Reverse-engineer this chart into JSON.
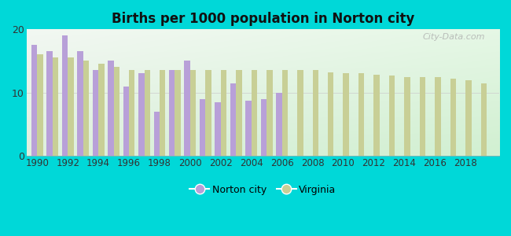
{
  "title": "Births per 1000 population in Norton city",
  "background_color": "#00d8d8",
  "norton_color": "#b8a0d8",
  "virginia_color": "#c8cf96",
  "norton_years": [
    1990,
    1991,
    1992,
    1993,
    1994,
    1995,
    1996,
    1997,
    1998,
    1999,
    2000,
    2001,
    2002,
    2003,
    2004,
    2005,
    2006
  ],
  "norton_vals": [
    17.5,
    16.5,
    19.0,
    16.5,
    13.5,
    15.0,
    11.0,
    13.0,
    7.0,
    13.5,
    15.0,
    9.0,
    8.5,
    11.5,
    8.7,
    9.0,
    10.0
  ],
  "virginia_years": [
    1990,
    1991,
    1992,
    1993,
    1994,
    1995,
    1996,
    1997,
    1998,
    1999,
    2000,
    2001,
    2002,
    2003,
    2004,
    2005,
    2006,
    2007,
    2008,
    2009,
    2010,
    2011,
    2012,
    2013,
    2014,
    2015,
    2016,
    2017,
    2018,
    2019
  ],
  "virginia_vals": [
    16.0,
    15.5,
    15.5,
    15.0,
    14.5,
    14.0,
    13.5,
    13.5,
    13.5,
    13.5,
    13.5,
    13.5,
    13.5,
    13.5,
    13.5,
    13.5,
    13.5,
    13.5,
    13.5,
    13.2,
    13.0,
    13.0,
    12.8,
    12.7,
    12.5,
    12.5,
    12.5,
    12.2,
    12.0,
    11.5
  ],
  "ylim": [
    0,
    20
  ],
  "yticks": [
    0,
    10,
    20
  ],
  "bar_width": 0.38,
  "legend_norton": "Norton city",
  "legend_virginia": "Virginia",
  "watermark": "City-Data.com",
  "xlim_left": 1989.3,
  "xlim_right": 2020.2
}
